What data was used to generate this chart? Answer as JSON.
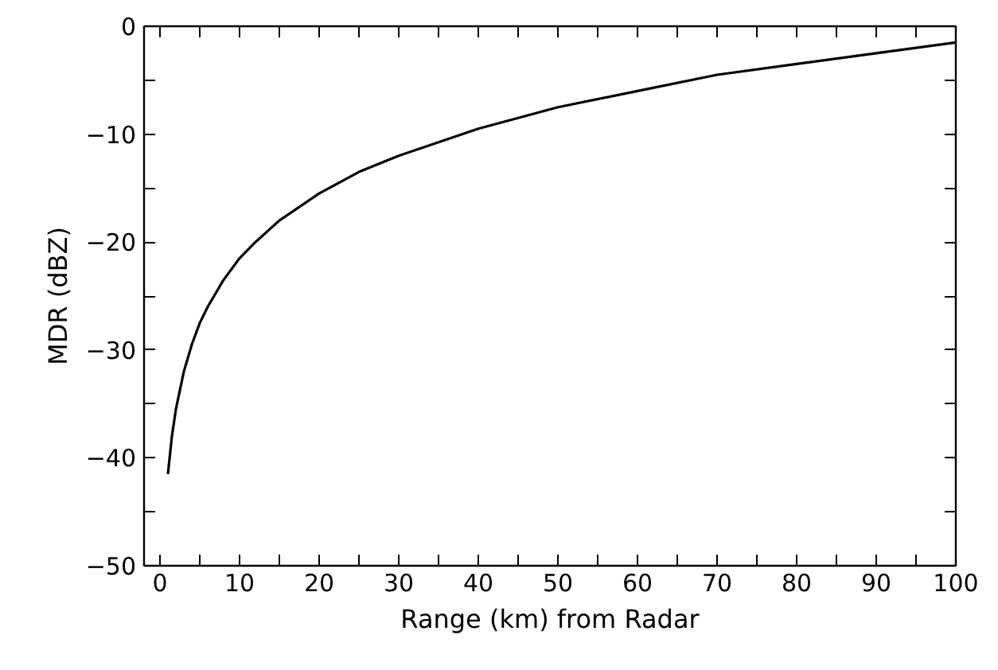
{
  "chart_data": {
    "type": "line",
    "xlabel": "Range (km) from Radar",
    "ylabel": "MDR (dBZ)",
    "x": [
      1,
      1.5,
      2,
      3,
      4,
      5,
      6,
      8,
      10,
      12,
      15,
      20,
      25,
      30,
      40,
      50,
      60,
      70,
      80,
      90,
      100
    ],
    "series": [
      {
        "color": "#000000",
        "values": [
          -41.5,
          -38,
          -35.5,
          -32,
          -29.5,
          -27.5,
          -26,
          -23.5,
          -21.5,
          -20,
          -18,
          -15.5,
          -13.5,
          -12,
          -9.5,
          -7.5,
          -6,
          -4.5,
          -3.5,
          -2.5,
          -1.5
        ]
      }
    ],
    "xlim": [
      -2,
      100
    ],
    "ylim": [
      -50,
      0
    ],
    "xticks": [
      0,
      {
        "value": 5,
        "label": null
      },
      10,
      {
        "value": 15,
        "label": null
      },
      20,
      {
        "value": 25,
        "label": null
      },
      30,
      {
        "value": 35,
        "label": null
      },
      40,
      {
        "value": 45,
        "label": null
      },
      50,
      {
        "value": 55,
        "label": null
      },
      60,
      {
        "value": 65,
        "label": null
      },
      70,
      {
        "value": 75,
        "label": null
      },
      80,
      {
        "value": 85,
        "label": null
      },
      90,
      {
        "value": 95,
        "label": null
      },
      100
    ],
    "yticks": [
      -50,
      {
        "value": -45,
        "label": null
      },
      -40,
      {
        "value": -35,
        "label": null
      },
      -30,
      {
        "value": -25,
        "label": null
      },
      -20,
      {
        "value": -15,
        "label": null
      },
      -10,
      {
        "value": -5,
        "label": null
      },
      0
    ],
    "grid": false,
    "marker": "none",
    "line_style": "solid"
  }
}
